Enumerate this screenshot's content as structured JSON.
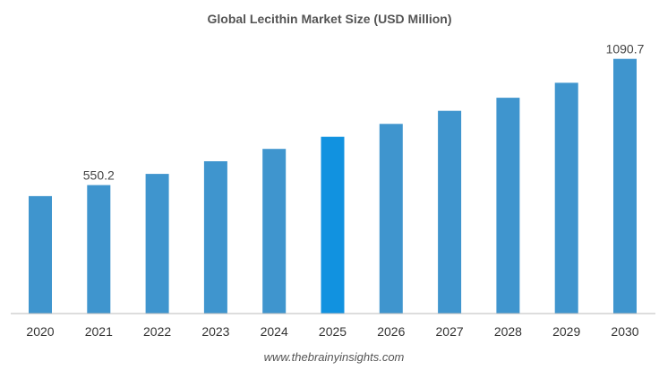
{
  "chart_data": {
    "type": "bar",
    "title": "Global Lecithin Market Size (USD Million)",
    "xlabel": "",
    "ylabel": "",
    "categories": [
      "2020",
      "2021",
      "2022",
      "2023",
      "2024",
      "2025",
      "2026",
      "2027",
      "2028",
      "2029",
      "2030"
    ],
    "values": [
      503,
      550.2,
      598,
      652,
      705,
      757,
      812,
      868,
      924,
      988,
      1090.7
    ],
    "data_labels": {
      "1": "550.2",
      "10": "1090.7"
    },
    "highlight_index": 5,
    "ylim": [
      0,
      1170
    ],
    "grid": false,
    "legend": "none",
    "colors": {
      "bar": "#3f95ce",
      "highlight": "#1192e0",
      "axis": "#bbbbbb"
    }
  },
  "watermark": "www.thebrainyinsights.com"
}
